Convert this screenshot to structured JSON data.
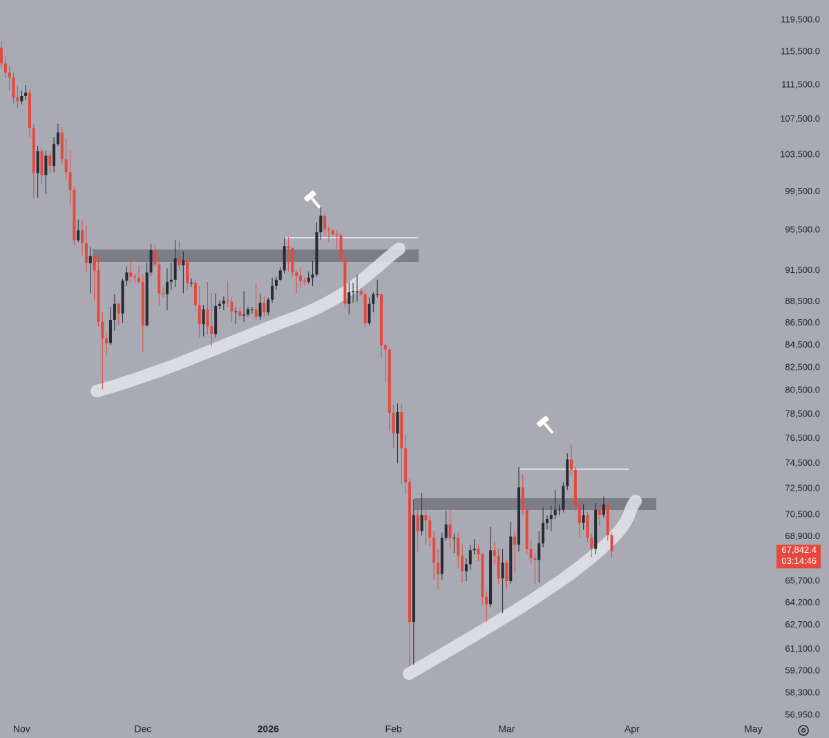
{
  "chart_data": {
    "type": "candlestick",
    "log_scale": true,
    "ylim": [
      56740,
      122080
    ],
    "xlim": [
      -0.35,
      189.7
    ],
    "up_color": "#262a33",
    "down_color": "#e5483d",
    "xticks": [
      {
        "value": 5,
        "label": "Nov"
      },
      {
        "value": 35,
        "label": "Dec"
      },
      {
        "value": 66,
        "label": "2026"
      },
      {
        "value": 97,
        "label": "Feb"
      },
      {
        "value": 125,
        "label": "Mar"
      },
      {
        "value": 156,
        "label": "Apr"
      },
      {
        "value": 186,
        "label": "May"
      }
    ],
    "yticks": [
      {
        "value": 119500,
        "label": "119,500.0"
      },
      {
        "value": 115500,
        "label": "115,500.0"
      },
      {
        "value": 111500,
        "label": "111,500.0"
      },
      {
        "value": 107500,
        "label": "107,500.0"
      },
      {
        "value": 103500,
        "label": "103,500.0"
      },
      {
        "value": 99500,
        "label": "99,500.0"
      },
      {
        "value": 95500,
        "label": "95,500.0"
      },
      {
        "value": 91500,
        "label": "91,500.0"
      },
      {
        "value": 88500,
        "label": "88,500.0"
      },
      {
        "value": 86500,
        "label": "86,500.0"
      },
      {
        "value": 84500,
        "label": "84,500.0"
      },
      {
        "value": 82500,
        "label": "82,500.0"
      },
      {
        "value": 80500,
        "label": "80,500.0"
      },
      {
        "value": 78500,
        "label": "78,500.0"
      },
      {
        "value": 76500,
        "label": "76,500.0"
      },
      {
        "value": 74500,
        "label": "74,500.0"
      },
      {
        "value": 72500,
        "label": "72,500.0"
      },
      {
        "value": 70500,
        "label": "70,500.0"
      },
      {
        "value": 68900,
        "label": "68,900.0"
      },
      {
        "value": 65700,
        "label": "65,700.0"
      },
      {
        "value": 64200,
        "label": "64,200.0"
      },
      {
        "value": 62700,
        "label": "62,700.0"
      },
      {
        "value": 61100,
        "label": "61,100.0"
      },
      {
        "value": 59700,
        "label": "59,700.0"
      },
      {
        "value": 58300,
        "label": "58,300.0"
      },
      {
        "value": 56950,
        "label": "56,950.0"
      }
    ],
    "open": [
      116000,
      114100,
      113000,
      112400,
      110000,
      109600,
      110200,
      110600,
      106500,
      101500,
      103900,
      101300,
      103400,
      102300,
      104700,
      106000,
      103000,
      101600,
      99700,
      94500,
      95500,
      94200,
      92200,
      92900,
      91500,
      86600,
      85100,
      84700,
      86800,
      88300,
      87400,
      90500,
      91300,
      90900,
      90800,
      90400,
      86300,
      91300,
      93500,
      92100,
      89300,
      89200,
      90400,
      90600,
      92700,
      92000,
      92500,
      90300,
      90300,
      88200,
      86400,
      87800,
      86200,
      85500,
      88100,
      88300,
      88600,
      88500,
      87600,
      87600,
      87200,
      87300,
      87800,
      87800,
      87100,
      88400,
      87500,
      88700,
      90000,
      90600,
      91500,
      93900,
      93700,
      91300,
      91000,
      90500,
      90400,
      90800,
      91100,
      95300,
      97000,
      95600,
      95500,
      95100,
      95000,
      92600,
      88300,
      89400,
      89500,
      89500,
      89200,
      86500,
      88300,
      89200,
      89200,
      84500,
      84100,
      78600,
      76900,
      78700,
      75700,
      73000,
      62900,
      70500,
      69300,
      70500,
      70100,
      68800,
      67000,
      66200,
      68800,
      69800,
      68800,
      68800,
      67500,
      66400,
      66900,
      67900,
      68000,
      67600,
      64600,
      64100,
      67900,
      67500,
      65900,
      67000,
      65700,
      68900,
      68300,
      72600,
      70900,
      68000,
      67300,
      67200,
      68400,
      69900,
      70200,
      70500,
      70900,
      70900,
      72700,
      74800,
      74000,
      71200,
      69900,
      70500,
      68800,
      68000,
      70900,
      70500,
      71300,
      69000
    ],
    "high": [
      116800,
      115000,
      113800,
      113000,
      111400,
      110800,
      111500,
      111000,
      107000,
      104500,
      104300,
      104000,
      103900,
      105500,
      107000,
      106600,
      105300,
      104000,
      100000,
      96600,
      96500,
      96000,
      93800,
      92900,
      93100,
      87500,
      85600,
      88000,
      89200,
      88400,
      90700,
      91900,
      93000,
      91200,
      92000,
      91100,
      92300,
      94100,
      94000,
      92700,
      89900,
      91700,
      92300,
      94500,
      94400,
      93400,
      92900,
      90700,
      90600,
      90000,
      88200,
      90400,
      89300,
      89300,
      88600,
      89000,
      90500,
      88900,
      88000,
      88000,
      89500,
      88000,
      88000,
      90300,
      89300,
      89000,
      88900,
      90800,
      90900,
      91800,
      94700,
      94800,
      93800,
      91500,
      91800,
      90800,
      91400,
      92400,
      96300,
      97900,
      97300,
      95900,
      95600,
      95500,
      95200,
      93000,
      90400,
      90300,
      91100,
      89800,
      89300,
      88900,
      89400,
      90600,
      89300,
      84600,
      84300,
      79300,
      79400,
      79300,
      76800,
      73300,
      71700,
      71600,
      72200,
      71500,
      70500,
      69300,
      68000,
      69200,
      70800,
      70900,
      69100,
      69200,
      68300,
      67300,
      68300,
      68700,
      68300,
      67700,
      65000,
      69600,
      68500,
      68000,
      68000,
      67200,
      70000,
      69300,
      74200,
      73600,
      71000,
      68600,
      67700,
      69300,
      71100,
      70500,
      71200,
      72400,
      71300,
      73000,
      75300,
      76000,
      74200,
      71500,
      71300,
      70700,
      69100,
      71400,
      71600,
      71900,
      71400,
      69200
    ],
    "low": [
      113500,
      112300,
      110800,
      109300,
      108800,
      109200,
      109700,
      105500,
      98800,
      98900,
      100300,
      99300,
      101500,
      101600,
      104500,
      102400,
      100800,
      98200,
      94000,
      94300,
      93000,
      91300,
      89300,
      88600,
      86200,
      80600,
      83600,
      84500,
      85800,
      86300,
      86500,
      90000,
      90300,
      90300,
      90200,
      83900,
      86200,
      91000,
      91800,
      88100,
      88900,
      87700,
      89600,
      89900,
      91500,
      89300,
      89600,
      89900,
      87600,
      85200,
      85300,
      85400,
      84400,
      85200,
      87800,
      87700,
      88000,
      86600,
      86400,
      86900,
      86600,
      87100,
      87400,
      86800,
      86800,
      87100,
      87200,
      88400,
      89600,
      90500,
      91200,
      91400,
      90900,
      89300,
      89800,
      90000,
      90200,
      90000,
      90900,
      94500,
      95000,
      94300,
      94900,
      93600,
      92200,
      87900,
      87300,
      88400,
      88500,
      89000,
      86100,
      86300,
      87500,
      88900,
      83300,
      81200,
      77100,
      75700,
      74500,
      72900,
      72100,
      60000,
      60100,
      67800,
      69000,
      68300,
      68200,
      65800,
      65100,
      65800,
      68600,
      68000,
      67700,
      66600,
      65600,
      65700,
      66500,
      67600,
      67100,
      64100,
      62900,
      63900,
      66900,
      65500,
      63500,
      65200,
      65500,
      66300,
      67800,
      70500,
      67600,
      66900,
      65500,
      65600,
      68100,
      69400,
      69300,
      70200,
      70500,
      70700,
      72400,
      73500,
      70800,
      68800,
      69400,
      68500,
      67400,
      67600,
      69700,
      70300,
      68600,
      67400
    ],
    "close": [
      114100,
      113000,
      112400,
      110000,
      109600,
      110200,
      110600,
      106500,
      101500,
      103900,
      101300,
      103400,
      102300,
      104700,
      106000,
      103000,
      101600,
      99700,
      94500,
      95500,
      94200,
      92200,
      92900,
      91500,
      86600,
      85100,
      84700,
      86800,
      88300,
      87400,
      90500,
      91300,
      90900,
      90800,
      90400,
      86300,
      91300,
      93500,
      92100,
      89300,
      89200,
      90400,
      90600,
      92700,
      92000,
      92500,
      90300,
      90300,
      88200,
      86400,
      87800,
      86200,
      85500,
      88100,
      88300,
      88600,
      88500,
      87600,
      87600,
      87200,
      87300,
      87800,
      87800,
      87100,
      88400,
      87500,
      88700,
      90000,
      90600,
      91500,
      93900,
      93700,
      91300,
      91000,
      90500,
      90400,
      90800,
      91100,
      95300,
      97000,
      95600,
      95500,
      95100,
      95000,
      92600,
      88300,
      89400,
      89500,
      89500,
      89200,
      86500,
      88300,
      89200,
      89200,
      84500,
      84100,
      78600,
      76900,
      78700,
      75700,
      73000,
      62900,
      70500,
      69300,
      70500,
      70100,
      68800,
      67000,
      66200,
      68800,
      69800,
      68800,
      68800,
      67500,
      66400,
      66900,
      67900,
      68000,
      67600,
      64600,
      64100,
      67900,
      67500,
      65900,
      67000,
      65700,
      68900,
      68300,
      72600,
      70900,
      68000,
      67300,
      67200,
      68400,
      69900,
      70200,
      70500,
      70900,
      70900,
      72700,
      74800,
      74000,
      71200,
      69900,
      70500,
      68800,
      68000,
      70900,
      70500,
      71300,
      69000,
      67842.4
    ],
    "last_price": {
      "value": 67842.4,
      "label": "67,842.4"
    },
    "countdown": "03:14:46"
  }
}
